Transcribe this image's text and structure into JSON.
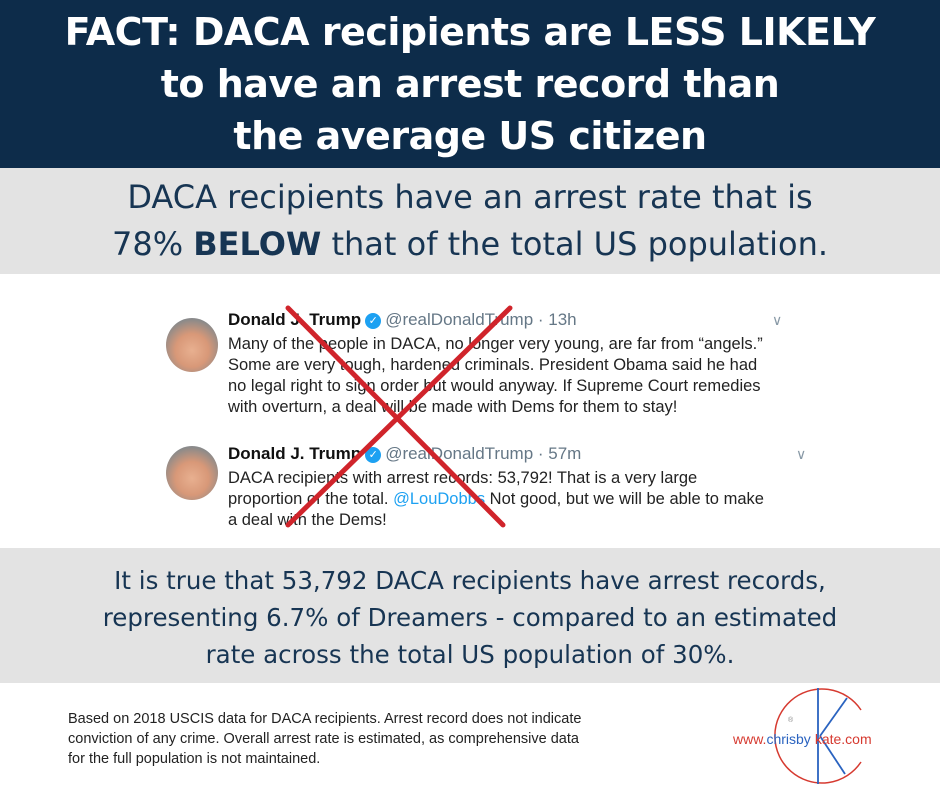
{
  "header": {
    "lines": [
      "FACT: DACA recipients are LESS LIKELY",
      "to have an arrest record than",
      "the average US citizen"
    ]
  },
  "subhead": {
    "line1": "DACA recipients have an arrest rate that is",
    "line2_pre": "78% ",
    "line2_bold": "BELOW",
    "line2_post": " that of the total US population."
  },
  "tweets": [
    {
      "name": "Donald J. Trump",
      "handle": "@realDonaldTrump",
      "time": "· 13h",
      "lines": [
        "Many of the people in DACA, no longer very young, are far from “angels.”",
        "Some are very tough, hardened criminals. President Obama said he had",
        "no legal right to sign order but would anyway. If Supreme Court remedies",
        "with overturn, a deal will be made with Dems for them to stay!"
      ]
    },
    {
      "name": "Donald J. Trump",
      "handle": "@realDonaldTrump",
      "time": "· 57m",
      "line1": "DACA recipients with arrest records: 53,792! That is a very large",
      "line2_pre": "proportion of the total. ",
      "mention": "@LouDobbs",
      "line2_post": "  Not good, but we will be able to make",
      "line3": "a deal with the Dems!"
    }
  ],
  "fact": {
    "lines": [
      "It is true that 53,792 DACA recipients have arrest records,",
      "representing 6.7% of Dreamers - compared to an estimated",
      "rate across the total US population of 30%."
    ]
  },
  "footnote": {
    "lines": [
      "Based on 2018 USCIS data for DACA recipients.  Arrest record does not indicate",
      "conviction of any crime.  Overall arrest rate is estimated, as comprehensive data",
      "for the full population is not maintained."
    ]
  },
  "logo": {
    "www": "www.",
    "chrisby": "chrisby",
    "kate": "kate.com",
    "reg": "®"
  },
  "colors": {
    "navy": "#0d2c4a",
    "band": "#e3e3e3",
    "cross": "#d0242b",
    "logo_red": "#d63a30",
    "logo_blue": "#2a63c0"
  }
}
